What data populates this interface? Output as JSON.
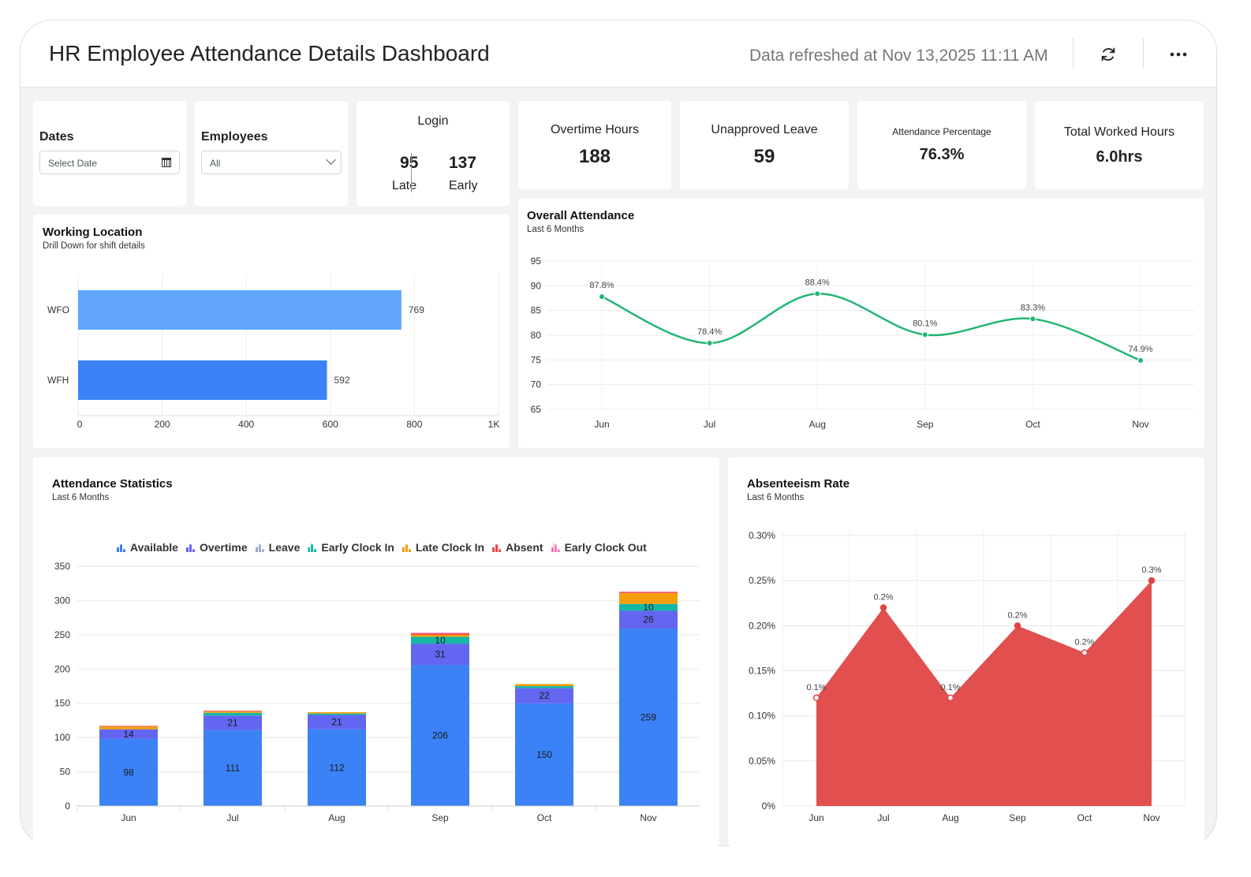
{
  "header": {
    "title": "HR Employee Attendance Details Dashboard",
    "refreshed": "Data refreshed at Nov 13,2025 11:11 AM",
    "icons": [
      "refresh-icon",
      "more-icon"
    ]
  },
  "filters": {
    "dates": {
      "label": "Dates",
      "placeholder": "Select Date",
      "icon": "calendar-icon"
    },
    "employees": {
      "label": "Employees",
      "value": "All",
      "icon": "chevron-down-icon"
    }
  },
  "login": {
    "title": "Login",
    "late_value": "95",
    "late_label": "Late",
    "early_value": "137",
    "early_label": "Early"
  },
  "kpis": [
    {
      "title": "Overtime Hours",
      "value": "188"
    },
    {
      "title": "Unapproved Leave",
      "value": "59"
    },
    {
      "title": "Attendance Percentage",
      "value": "76.3%"
    },
    {
      "title": "Total Worked Hours",
      "value": "6.0hrs"
    }
  ],
  "colors": {
    "available": "#3b82f6",
    "overtime": "#6366f1",
    "leave": "#9aa9c2",
    "early_clock_in": "#14b8a6",
    "late_clock_in": "#f59e0b",
    "absent": "#ef4444",
    "early_clock_out": "#f472b6",
    "wl_wfo": "#60a5fa",
    "wl_wfh": "#3b82f6",
    "attendance_line": "#22b573",
    "absent_area": "#e04646"
  },
  "chart_data": [
    {
      "type": "bar",
      "orientation": "horizontal",
      "title": "Working Location",
      "subtitle": "Drill Down for shift details",
      "categories": [
        "WFO",
        "WFH"
      ],
      "values": [
        769,
        592
      ],
      "xlim": [
        0,
        1000
      ],
      "xticks": [
        "0",
        "200",
        "400",
        "600",
        "800",
        "1K"
      ],
      "grid": true
    },
    {
      "type": "line",
      "title": "Overall Attendance",
      "subtitle": "Last 6 Months",
      "categories": [
        "Jun",
        "Jul",
        "Aug",
        "Sep",
        "Oct",
        "Nov"
      ],
      "values": [
        87.8,
        78.4,
        88.4,
        80.1,
        83.3,
        74.9
      ],
      "labels": [
        "87.8%",
        "78.4%",
        "88.4%",
        "80.1%",
        "83.3%",
        "74.9%"
      ],
      "ylim": [
        65,
        95
      ],
      "yticks": [
        "65",
        "70",
        "75",
        "80",
        "85",
        "90",
        "95"
      ],
      "smooth": true,
      "grid": true
    },
    {
      "type": "bar",
      "stacked": true,
      "title": "Attendance Statistics",
      "subtitle": "Last 6 Months",
      "categories": [
        "Jun",
        "Jul",
        "Aug",
        "Sep",
        "Oct",
        "Nov"
      ],
      "ylim": [
        0,
        350
      ],
      "yticks": [
        "0",
        "50",
        "100",
        "150",
        "200",
        "250",
        "300",
        "350"
      ],
      "legend": "top",
      "grid": true,
      "series": [
        {
          "name": "Available",
          "key": "available",
          "values": [
            98,
            111,
            112,
            206,
            150,
            259
          ],
          "labels": [
            "98",
            "111",
            "112",
            "206",
            "150",
            "259"
          ]
        },
        {
          "name": "Overtime",
          "key": "overtime",
          "values": [
            14,
            21,
            21,
            31,
            22,
            26
          ],
          "labels": [
            "14",
            "21",
            "21",
            "31",
            "22",
            "26"
          ]
        },
        {
          "name": "Leave",
          "key": "leave",
          "values": [
            0,
            0,
            0,
            0,
            0,
            0
          ]
        },
        {
          "name": "Early Clock In",
          "key": "early_clock_in",
          "values": [
            0,
            4,
            2,
            10,
            3,
            10
          ],
          "labels": [
            "",
            "",
            "",
            "10",
            "",
            "10"
          ]
        },
        {
          "name": "Late Clock In",
          "key": "late_clock_in",
          "values": [
            4,
            2,
            2,
            3,
            3,
            16
          ]
        },
        {
          "name": "Absent",
          "key": "absent",
          "values": [
            1,
            1,
            0,
            2,
            0,
            1
          ]
        },
        {
          "name": "Early Clock Out",
          "key": "early_clock_out",
          "values": [
            0,
            0,
            0,
            1,
            0,
            1
          ]
        }
      ]
    },
    {
      "type": "area",
      "title": "Absenteeism Rate",
      "subtitle": "Last 6 Months",
      "categories": [
        "Jun",
        "Jul",
        "Aug",
        "Sep",
        "Oct",
        "Nov"
      ],
      "values": [
        0.12,
        0.22,
        0.12,
        0.2,
        0.17,
        0.25
      ],
      "labels": [
        "0.1%",
        "0.2%",
        "0.1%",
        "0.2%",
        "0.2%",
        "0.3%"
      ],
      "ylim": [
        0,
        0.3
      ],
      "yticks": [
        "0%",
        "0.05%",
        "0.10%",
        "0.15%",
        "0.20%",
        "0.25%",
        "0.30%"
      ],
      "grid": true
    }
  ]
}
